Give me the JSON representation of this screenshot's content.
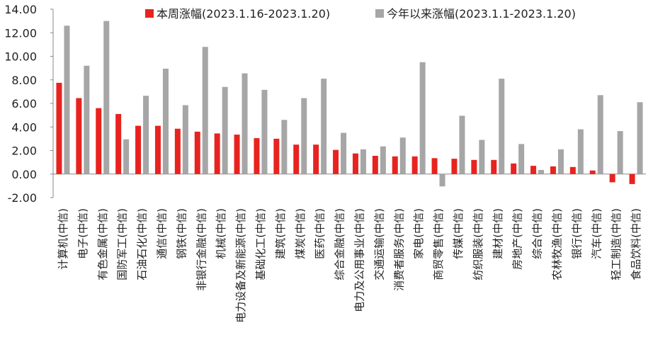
{
  "chart_data": {
    "type": "bar",
    "ylim": [
      -2,
      14
    ],
    "yticks": [
      "-2.00",
      "0.00",
      "2.00",
      "4.00",
      "6.00",
      "8.00",
      "10.00",
      "12.00",
      "14.00"
    ],
    "grid": false,
    "legend_position": "top",
    "categories": [
      "计算机(中信)",
      "电子(中信)",
      "有色金属(中信)",
      "国防军工(中信)",
      "石油石化(中信)",
      "通信(中信)",
      "钢铁(中信)",
      "非银行金融(中信)",
      "机械(中信)",
      "电力设备及新能源(中信)",
      "基础化工(中信)",
      "建筑(中信)",
      "煤炭(中信)",
      "医药(中信)",
      "综合金融(中信)",
      "电力及公用事业(中信)",
      "交通运输(中信)",
      "消费者服务(中信)",
      "家电(中信)",
      "商贸零售(中信)",
      "传媒(中信)",
      "纺织服装(中信)",
      "建材(中信)",
      "房地产(中信)",
      "综合(中信)",
      "农林牧渔(中信)",
      "银行(中信)",
      "汽车(中信)",
      "轻工制造(中信)",
      "食品饮料(中信)"
    ],
    "series": [
      {
        "name": "本周涨幅(2023.1.16-2023.1.20)",
        "color": "#e8231f",
        "values": [
          7.75,
          6.45,
          5.6,
          5.1,
          4.1,
          4.1,
          3.85,
          3.6,
          3.45,
          3.35,
          3.05,
          3.0,
          2.5,
          2.5,
          2.05,
          1.75,
          1.55,
          1.5,
          1.5,
          1.35,
          1.3,
          1.2,
          1.2,
          0.9,
          0.7,
          0.65,
          0.6,
          0.3,
          -0.7,
          -0.85
        ]
      },
      {
        "name": "今年以来涨幅(2023.1.1-2023.1.20)",
        "color": "#a6a6a6",
        "values": [
          12.6,
          9.2,
          13.0,
          2.95,
          6.65,
          8.95,
          5.85,
          10.8,
          7.4,
          8.55,
          7.15,
          4.6,
          6.45,
          8.1,
          3.5,
          2.1,
          2.35,
          3.1,
          9.5,
          -1.05,
          4.95,
          2.9,
          8.1,
          2.55,
          0.35,
          2.1,
          3.8,
          6.7,
          3.65,
          6.1
        ]
      }
    ]
  }
}
